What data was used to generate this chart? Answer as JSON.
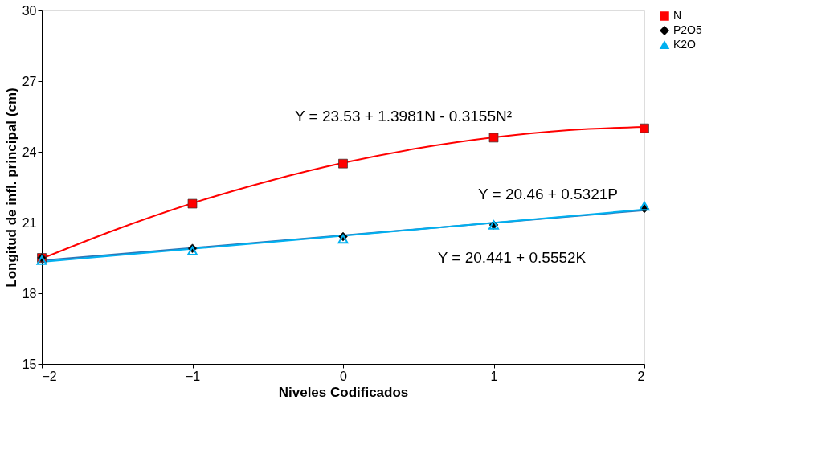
{
  "chart_data": {
    "type": "scatter",
    "xlabel": "Niveles Codificados",
    "ylabel": "Longitud de infl. principal (cm)",
    "x": [
      -2,
      -1,
      0,
      1,
      2
    ],
    "xlim": [
      -2,
      2
    ],
    "xticks": [
      -2,
      -1,
      0,
      1,
      2
    ],
    "ylim": [
      15,
      30
    ],
    "yticks": [
      15,
      18,
      21,
      24,
      27,
      30
    ],
    "grid": false,
    "legend": "right",
    "series": [
      {
        "name": "N",
        "color": "#ff0000",
        "marker": "square",
        "values": [
          19.5,
          21.8,
          23.5,
          24.6,
          25.0
        ]
      },
      {
        "name": "P2O5",
        "color": "#000000",
        "marker": "diamond",
        "values": [
          19.5,
          19.9,
          20.4,
          20.9,
          21.6
        ]
      },
      {
        "name": "K2O",
        "color": "#00b0f0",
        "marker": "triangle",
        "values": [
          19.4,
          19.8,
          20.3,
          20.9,
          21.7
        ]
      },
      {
        "type": "line",
        "color": "#ff0000",
        "x": [
          -2,
          -1.5,
          -1,
          -0.5,
          0,
          0.5,
          1,
          1.5,
          2
        ],
        "values": [
          19.47,
          20.72,
          21.82,
          22.75,
          23.53,
          24.15,
          24.61,
          24.92,
          25.06
        ]
      },
      {
        "type": "line",
        "color": "#2e75b6",
        "x": [
          -2,
          2
        ],
        "values": [
          19.39,
          21.52
        ]
      },
      {
        "type": "line",
        "color": "#00b0f0",
        "x": [
          -2,
          2
        ],
        "values": [
          19.33,
          21.55
        ]
      }
    ],
    "annotations": [
      "Y = 23.53 + 1.3981N - 0.3155N²",
      "Y = 20.46 + 0.5321P",
      "Y = 20.441 + 0.5552K"
    ]
  }
}
